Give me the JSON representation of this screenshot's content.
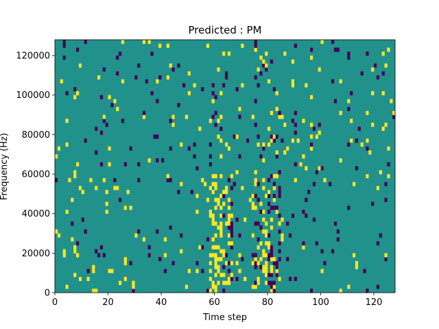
{
  "chart_data": {
    "type": "heatmap",
    "title": "Predicted : PM",
    "xlabel": "Time step",
    "ylabel": "Frequency (Hz)",
    "xlim": [
      0,
      128
    ],
    "ylim": [
      0,
      128000
    ],
    "x_ticks": [
      0,
      20,
      40,
      60,
      80,
      100,
      120
    ],
    "y_ticks": [
      0,
      20000,
      40000,
      60000,
      80000,
      100000,
      120000
    ],
    "grid": false,
    "colors": {
      "background": "#21918c",
      "high": "#fde725",
      "low": "#440154"
    },
    "seed": 7
  }
}
